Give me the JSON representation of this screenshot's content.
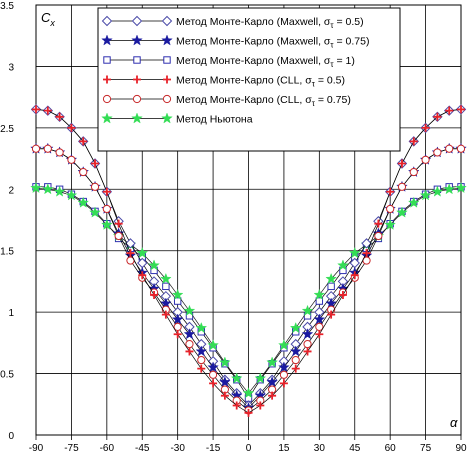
{
  "chart_data": {
    "type": "line",
    "xlabel": "α",
    "ylabel": "C",
    "ylabel_sub": "x",
    "xlim": [
      -90,
      90
    ],
    "ylim": [
      0,
      3.5
    ],
    "xticks": [
      "-90",
      "-75",
      "-60",
      "-45",
      "-30",
      "-15",
      "0",
      "15",
      "30",
      "45",
      "60",
      "75",
      "90"
    ],
    "yticks": [
      "0",
      "0.5",
      "1",
      "1.5",
      "2",
      "2.5",
      "3",
      "3.5"
    ],
    "grid": true,
    "legend_position": "top-center",
    "x": [
      -90,
      -85,
      -80,
      -75,
      -70,
      -65,
      -60,
      -55,
      -50,
      -45,
      -40,
      -35,
      -30,
      -25,
      -20,
      -15,
      -10,
      -5,
      0,
      5,
      10,
      15,
      20,
      25,
      30,
      35,
      40,
      45,
      50,
      55,
      60,
      65,
      70,
      75,
      80,
      85,
      90
    ],
    "series": [
      {
        "name": "Метод Монте-Карло (Maxwell,  σ",
        "name_sub": "τ",
        "name_tail": " = 0.5)",
        "marker": "diamond-open",
        "color": "#4a4aa8",
        "values": [
          2.65,
          2.64,
          2.59,
          2.5,
          2.39,
          2.21,
          1.98,
          1.74,
          1.56,
          1.4,
          1.25,
          1.13,
          1.0,
          0.88,
          0.74,
          0.6,
          0.45,
          0.34,
          0.24,
          0.34,
          0.45,
          0.6,
          0.74,
          0.88,
          1.0,
          1.13,
          1.25,
          1.4,
          1.56,
          1.74,
          1.98,
          2.21,
          2.39,
          2.5,
          2.59,
          2.64,
          2.65
        ]
      },
      {
        "name": "Метод Монте-Карло (Maxwell,  σ",
        "name_sub": "τ",
        "name_tail": " = 0.75)",
        "marker": "star-filled",
        "color": "#1a1aa0",
        "values": [
          2.33,
          2.33,
          2.3,
          2.24,
          2.14,
          2.02,
          1.84,
          1.64,
          1.46,
          1.32,
          1.19,
          1.07,
          0.94,
          0.82,
          0.68,
          0.55,
          0.43,
          0.32,
          0.22,
          0.32,
          0.43,
          0.55,
          0.68,
          0.82,
          0.94,
          1.07,
          1.19,
          1.32,
          1.46,
          1.64,
          1.84,
          2.02,
          2.14,
          2.24,
          2.3,
          2.33,
          2.33
        ]
      },
      {
        "name": "Метод Монте-Карло (Maxwell,  σ",
        "name_sub": "τ",
        "name_tail": " = 1)",
        "marker": "square-open",
        "color": "#2f2fb0",
        "values": [
          2.02,
          2.02,
          2.0,
          1.96,
          1.9,
          1.82,
          1.72,
          1.6,
          1.52,
          1.45,
          1.34,
          1.21,
          1.09,
          0.97,
          0.84,
          0.71,
          0.58,
          0.45,
          0.3,
          0.45,
          0.58,
          0.71,
          0.84,
          0.97,
          1.09,
          1.21,
          1.34,
          1.45,
          1.52,
          1.6,
          1.72,
          1.82,
          1.9,
          1.96,
          2.0,
          2.02,
          2.02
        ]
      },
      {
        "name": "Метод Монте-Карло (CLL,  σ",
        "name_sub": "τ",
        "name_tail": " = 0.5)",
        "marker": "plus",
        "color": "#e8222a",
        "values": [
          2.65,
          2.64,
          2.59,
          2.5,
          2.39,
          2.21,
          1.98,
          1.72,
          1.48,
          1.3,
          1.14,
          0.98,
          0.82,
          0.68,
          0.54,
          0.42,
          0.32,
          0.24,
          0.18,
          0.24,
          0.32,
          0.42,
          0.54,
          0.68,
          0.82,
          0.98,
          1.14,
          1.3,
          1.48,
          1.72,
          1.98,
          2.21,
          2.39,
          2.5,
          2.59,
          2.64,
          2.65
        ]
      },
      {
        "name": "Метод Монте-Карло (CLL,  σ",
        "name_sub": "τ",
        "name_tail": " = 0.75)",
        "marker": "circle-open",
        "color": "#c8282a",
        "values": [
          2.33,
          2.33,
          2.3,
          2.24,
          2.14,
          2.02,
          1.84,
          1.62,
          1.42,
          1.28,
          1.16,
          1.02,
          0.88,
          0.74,
          0.61,
          0.49,
          0.37,
          0.28,
          0.2,
          0.28,
          0.37,
          0.49,
          0.61,
          0.74,
          0.88,
          1.02,
          1.16,
          1.28,
          1.42,
          1.62,
          1.84,
          2.02,
          2.14,
          2.24,
          2.3,
          2.33,
          2.33
        ]
      },
      {
        "name": "Метод Ньютона",
        "name_sub": "",
        "name_tail": "",
        "marker": "star-filled",
        "color": "#33dd55",
        "values": [
          2.01,
          2.0,
          1.98,
          1.95,
          1.89,
          1.81,
          1.71,
          1.62,
          1.55,
          1.48,
          1.38,
          1.27,
          1.14,
          1.01,
          0.87,
          0.73,
          0.59,
          0.46,
          0.34,
          0.46,
          0.59,
          0.73,
          0.87,
          1.01,
          1.14,
          1.27,
          1.38,
          1.48,
          1.55,
          1.62,
          1.71,
          1.81,
          1.89,
          1.95,
          1.98,
          2.0,
          2.01
        ]
      }
    ]
  }
}
